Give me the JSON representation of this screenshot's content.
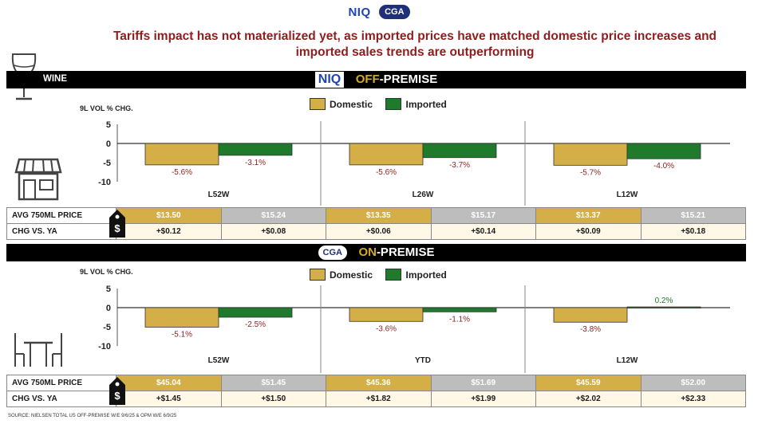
{
  "logos": {
    "niq": "NIQ",
    "cga": "CGA"
  },
  "headline": {
    "line1": "Tariffs impact has not materialized yet, as imported prices have matched domestic price increases and",
    "line2": "imported sales trends are outperforming"
  },
  "colors": {
    "domestic": "#d4af48",
    "imported": "#1f7a2c",
    "neg_label": "#8e1d1d",
    "pos_label": "#1f7a2c",
    "headline": "#8e1d1d",
    "accent": "#d4aa2c"
  },
  "off_premise": {
    "bar_label": "WINE",
    "badge": "NIQ",
    "title_accent": "OFF",
    "title_rest": "-PREMISE",
    "legend": {
      "domestic": "Domestic",
      "imported": "Imported"
    },
    "y_axis_label": "9L VOL % CHG.",
    "price_row_label": "AVG 750ML PRICE",
    "chg_row_label": "CHG VS. YA",
    "prices": [
      "$13.50",
      "$15.24",
      "$13.35",
      "$15.17",
      "$13.37",
      "$15.21"
    ],
    "changes": [
      "+$0.12",
      "+$0.08",
      "+$0.06",
      "+$0.14",
      "+$0.09",
      "+$0.18"
    ]
  },
  "on_premise": {
    "badge": "CGA",
    "title_accent": "ON",
    "title_rest": "-PREMISE",
    "legend": {
      "domestic": "Domestic",
      "imported": "Imported"
    },
    "y_axis_label": "9L VOL % CHG.",
    "price_row_label": "AVG 750ML PRICE",
    "chg_row_label": "CHG VS. YA",
    "prices": [
      "$45.04",
      "$51.45",
      "$45.36",
      "$51.69",
      "$45.59",
      "$52.00"
    ],
    "changes": [
      "+$1.45",
      "+$1.50",
      "+$1.82",
      "+$1.99",
      "+$2.02",
      "+$2.33"
    ]
  },
  "icons": {
    "wine": "wine-glass-icon",
    "store": "store-icon",
    "table": "table-chairs-icon",
    "price_tag": "price-tag-icon"
  },
  "chart_data": [
    {
      "type": "bar",
      "title": "OFF-PREMISE",
      "ylabel": "9L VOL % CHG.",
      "ylim": [
        -10,
        5
      ],
      "yticks": [
        5,
        0,
        -5,
        -10
      ],
      "categories": [
        "L52W",
        "L26W",
        "L12W"
      ],
      "series": [
        {
          "name": "Domestic",
          "values": [
            -5.6,
            -5.6,
            -5.7
          ],
          "labels": [
            "-5.6%",
            "-5.6%",
            "-5.7%"
          ]
        },
        {
          "name": "Imported",
          "values": [
            -3.1,
            -3.7,
            -4.0
          ],
          "labels": [
            "-3.1%",
            "-3.7%",
            "-4.0%"
          ]
        }
      ]
    },
    {
      "type": "bar",
      "title": "ON-PREMISE",
      "ylabel": "9L VOL % CHG.",
      "ylim": [
        -10,
        5
      ],
      "yticks": [
        5,
        0,
        -5,
        -10
      ],
      "categories": [
        "L52W",
        "YTD",
        "L12W"
      ],
      "series": [
        {
          "name": "Domestic",
          "values": [
            -5.1,
            -3.6,
            -3.8
          ],
          "labels": [
            "-5.1%",
            "-3.6%",
            "-3.8%"
          ]
        },
        {
          "name": "Imported",
          "values": [
            -2.5,
            -1.1,
            0.2
          ],
          "labels": [
            "-2.5%",
            "-1.1%",
            "0.2%"
          ]
        }
      ]
    }
  ],
  "source": "SOURCE: NIELSEN TOTAL US OFF-PREMISE W/E 9/6/25 & OPM W/E 6/9/25"
}
